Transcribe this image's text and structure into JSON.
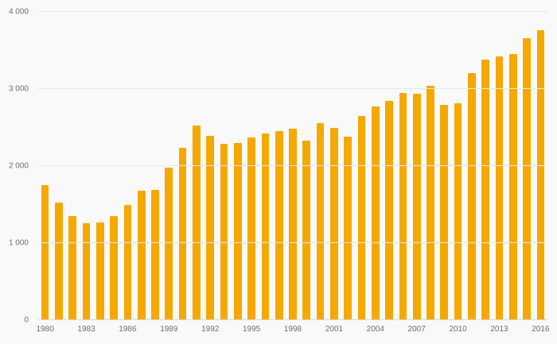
{
  "chart_data": {
    "type": "bar",
    "title": "",
    "xlabel": "",
    "ylabel": "",
    "categories": [
      1980,
      1981,
      1982,
      1983,
      1984,
      1985,
      1986,
      1987,
      1988,
      1989,
      1990,
      1991,
      1992,
      1993,
      1994,
      1995,
      1996,
      1997,
      1998,
      1999,
      2000,
      2001,
      2002,
      2003,
      2004,
      2005,
      2006,
      2007,
      2008,
      2009,
      2010,
      2011,
      2012,
      2013,
      2014,
      2015,
      2016
    ],
    "values": [
      1750,
      1530,
      1350,
      1260,
      1270,
      1350,
      1500,
      1680,
      1690,
      1980,
      2240,
      2530,
      2390,
      2290,
      2300,
      2370,
      2420,
      2450,
      2480,
      2330,
      2560,
      2490,
      2380,
      2650,
      2770,
      2850,
      2950,
      2940,
      3040,
      2790,
      2810,
      3210,
      3380,
      3420,
      3450,
      3660,
      3760
    ],
    "ylim": [
      0,
      4000
    ],
    "yticks": [
      0,
      1000,
      2000,
      3000,
      4000
    ],
    "ytick_labels": [
      "0",
      "1 000",
      "2 000",
      "3 000",
      "4 000"
    ],
    "xtick_labels": [
      "1980",
      "1983",
      "1986",
      "1989",
      "1992",
      "1995",
      "1998",
      "2001",
      "2004",
      "2007",
      "2010",
      "2013",
      "2016"
    ],
    "xtick_every": 3,
    "grid": true,
    "legend": "none",
    "bar_color": "#F5A800",
    "background": "#F9F9F9",
    "grid_color": "#E6E6E6",
    "baseline_color": "#D8D8D8",
    "tick_color": "#6E6E6E"
  }
}
